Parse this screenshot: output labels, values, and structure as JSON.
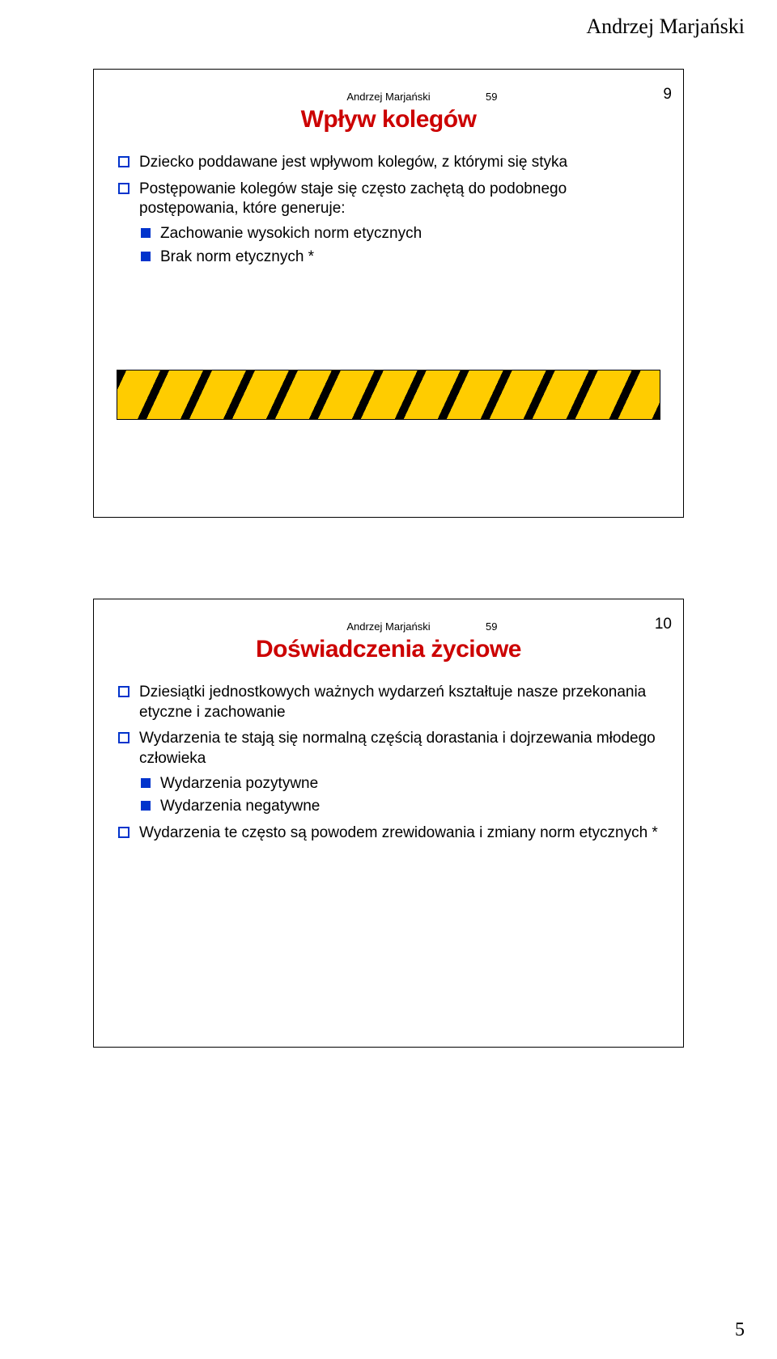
{
  "page_header": "Andrzej Marjański",
  "page_number": "5",
  "slides": [
    {
      "author": "Andrzej Marjański",
      "num_a": "59",
      "num_b": "9",
      "title": "Wpływ kolegów",
      "title_color": "#cc0000",
      "items": [
        {
          "text": "Dziecko poddawane jest wpływom kolegów, z którymi się styka"
        },
        {
          "text": "Postępowanie kolegów staje się często zachętą do podobnego postępowania, które generuje:",
          "subs": [
            "Zachowanie wysokich norm etycznych",
            "Brak norm etycznych *"
          ]
        }
      ]
    },
    {
      "author": "Andrzej Marjański",
      "num_a": "59",
      "num_b": "10",
      "title": "Doświadczenia życiowe",
      "title_color": "#cc0000",
      "items": [
        {
          "text": "Dziesiątki jednostkowych ważnych wydarzeń kształtuje nasze przekonania etyczne i zachowanie"
        },
        {
          "text": "Wydarzenia te stają się normalną częścią dorastania i dojrzewania młodego człowieka",
          "subs": [
            "Wydarzenia pozytywne",
            "Wydarzenia negatywne"
          ]
        },
        {
          "text": "Wydarzenia te często są powodem zrewidowania i zmiany norm etycznych     *"
        }
      ]
    }
  ],
  "hazard_colors": {
    "stripe": "#000000",
    "bg": "#ffcc00"
  }
}
